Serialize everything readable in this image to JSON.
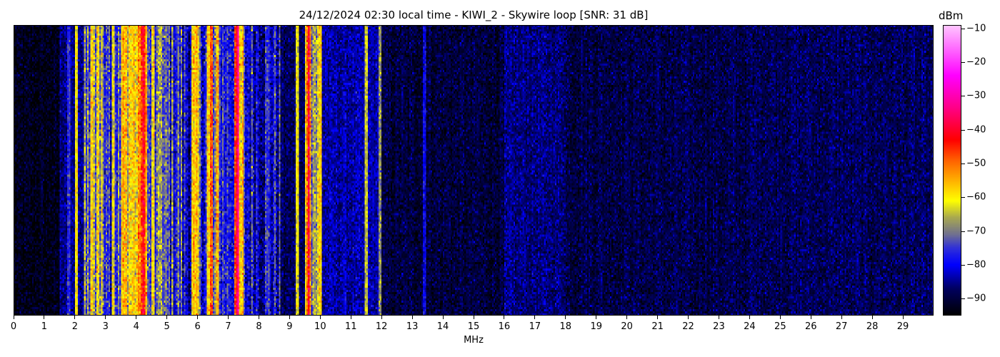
{
  "chart_data": {
    "type": "heatmap",
    "title": "24/12/2024 02:30 local time - KIWI_2 - Skywire loop [SNR: 31 dB]",
    "xlabel": "MHz",
    "ylabel": "",
    "xlim": [
      0,
      30
    ],
    "x_ticks": [
      0,
      1,
      2,
      3,
      4,
      5,
      6,
      7,
      8,
      9,
      10,
      11,
      12,
      13,
      14,
      15,
      16,
      17,
      18,
      19,
      20,
      21,
      22,
      23,
      24,
      25,
      26,
      27,
      28,
      29
    ],
    "colorbar": {
      "label": "dBm",
      "range": [
        -95,
        -9
      ],
      "ticks": [
        -10,
        -20,
        -30,
        -40,
        -50,
        -60,
        -70,
        -80,
        -90
      ],
      "colormap": [
        {
          "dbm": -95,
          "color": "#000000"
        },
        {
          "dbm": -87,
          "color": "#000060"
        },
        {
          "dbm": -80,
          "color": "#0000ff"
        },
        {
          "dbm": -75,
          "color": "#3030d8"
        },
        {
          "dbm": -71,
          "color": "#707090"
        },
        {
          "dbm": -66,
          "color": "#a8a850"
        },
        {
          "dbm": -61,
          "color": "#ffff00"
        },
        {
          "dbm": -55,
          "color": "#ffb000"
        },
        {
          "dbm": -49,
          "color": "#ff6000"
        },
        {
          "dbm": -43,
          "color": "#ff0000"
        },
        {
          "dbm": -34,
          "color": "#ff0080"
        },
        {
          "dbm": -24,
          "color": "#ff00ff"
        },
        {
          "dbm": -9,
          "color": "#ffc8ff"
        }
      ]
    },
    "time_rows": 136,
    "bands": [
      {
        "from": 0.0,
        "to": 1.5,
        "dbm": -93
      },
      {
        "from": 1.5,
        "to": 2.3,
        "dbm": -85
      },
      {
        "from": 2.3,
        "to": 3.1,
        "dbm": -69
      },
      {
        "from": 3.1,
        "to": 3.5,
        "dbm": -74
      },
      {
        "from": 3.5,
        "to": 4.1,
        "dbm": -59
      },
      {
        "from": 4.1,
        "to": 4.35,
        "dbm": -47
      },
      {
        "from": 4.35,
        "to": 5.5,
        "dbm": -75
      },
      {
        "from": 5.5,
        "to": 5.8,
        "dbm": -79
      },
      {
        "from": 5.8,
        "to": 6.05,
        "dbm": -63
      },
      {
        "from": 6.05,
        "to": 6.3,
        "dbm": -76
      },
      {
        "from": 6.3,
        "to": 6.45,
        "dbm": -61
      },
      {
        "from": 6.45,
        "to": 7.2,
        "dbm": -76
      },
      {
        "from": 7.2,
        "to": 7.35,
        "dbm": -40
      },
      {
        "from": 7.35,
        "to": 7.5,
        "dbm": -60
      },
      {
        "from": 7.5,
        "to": 8.7,
        "dbm": -79
      },
      {
        "from": 8.7,
        "to": 9.5,
        "dbm": -88
      },
      {
        "from": 9.5,
        "to": 9.55,
        "dbm": -70
      },
      {
        "from": 9.55,
        "to": 9.7,
        "dbm": -44
      },
      {
        "from": 9.7,
        "to": 10.0,
        "dbm": -66
      },
      {
        "from": 10.0,
        "to": 12.0,
        "dbm": -84
      },
      {
        "from": 12.0,
        "to": 16.0,
        "dbm": -90
      },
      {
        "from": 16.0,
        "to": 18.0,
        "dbm": -86
      },
      {
        "from": 18.0,
        "to": 24.0,
        "dbm": -89
      },
      {
        "from": 24.0,
        "to": 30.0,
        "dbm": -88
      }
    ],
    "lines": [
      {
        "mhz": 1.8,
        "dbm": -76
      },
      {
        "mhz": 2.05,
        "dbm": -60
      },
      {
        "mhz": 2.55,
        "dbm": -58
      },
      {
        "mhz": 2.75,
        "dbm": -60
      },
      {
        "mhz": 3.25,
        "dbm": -62
      },
      {
        "mhz": 4.55,
        "dbm": -60
      },
      {
        "mhz": 4.8,
        "dbm": -66
      },
      {
        "mhz": 6.45,
        "dbm": -48
      },
      {
        "mhz": 6.65,
        "dbm": -55
      },
      {
        "mhz": 9.25,
        "dbm": -62
      },
      {
        "mhz": 9.55,
        "dbm": -60
      },
      {
        "mhz": 10.0,
        "dbm": -58
      },
      {
        "mhz": 11.5,
        "dbm": -64
      },
      {
        "mhz": 11.95,
        "dbm": -68
      },
      {
        "mhz": 13.4,
        "dbm": -80
      }
    ]
  }
}
